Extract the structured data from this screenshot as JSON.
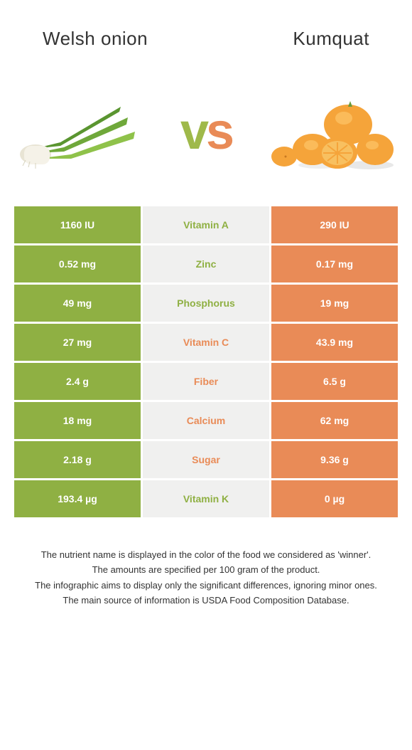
{
  "colors": {
    "green": "#8fb043",
    "orange": "#e98b57",
    "mid_bg": "#f0f0ef",
    "text_dark": "#333333"
  },
  "food_left": {
    "name": "Welsh onion"
  },
  "food_right": {
    "name": "Kumquat"
  },
  "vs_label": "vs",
  "table": {
    "rows": [
      {
        "left": "1160 IU",
        "name": "Vitamin A",
        "right": "290 IU",
        "winner": "left"
      },
      {
        "left": "0.52 mg",
        "name": "Zinc",
        "right": "0.17 mg",
        "winner": "left"
      },
      {
        "left": "49 mg",
        "name": "Phosphorus",
        "right": "19 mg",
        "winner": "left"
      },
      {
        "left": "27 mg",
        "name": "Vitamin C",
        "right": "43.9 mg",
        "winner": "right"
      },
      {
        "left": "2.4 g",
        "name": "Fiber",
        "right": "6.5 g",
        "winner": "right"
      },
      {
        "left": "18 mg",
        "name": "Calcium",
        "right": "62 mg",
        "winner": "right"
      },
      {
        "left": "2.18 g",
        "name": "Sugar",
        "right": "9.36 g",
        "winner": "right"
      },
      {
        "left": "193.4 µg",
        "name": "Vitamin K",
        "right": "0 µg",
        "winner": "left"
      }
    ]
  },
  "footer": {
    "line1": "The nutrient name is displayed in the color of the food we considered as 'winner'.",
    "line2": "The amounts are specified per 100 gram of the product.",
    "line3": "The infographic aims to display only the significant differences, ignoring minor ones.",
    "line4": "The main source of information is USDA Food Composition Database."
  }
}
